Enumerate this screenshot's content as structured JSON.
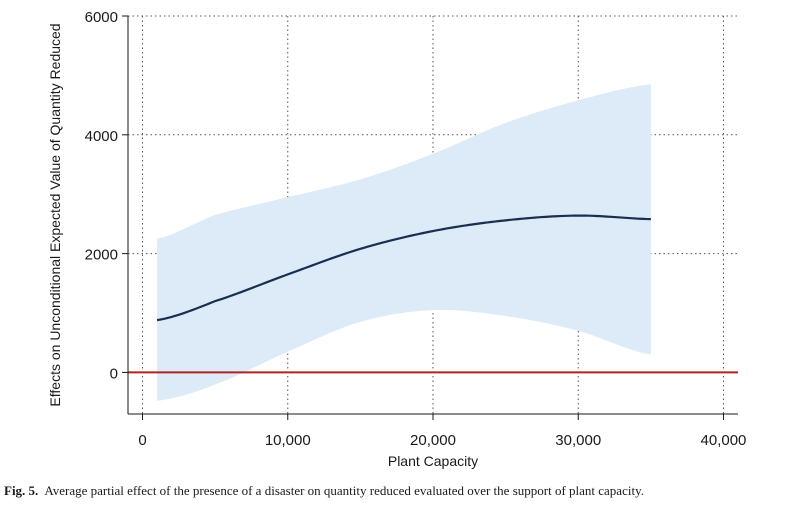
{
  "caption": {
    "label": "Fig. 5.",
    "text": "Average partial effect of the presence of a disaster on quantity reduced evaluated over the support of plant capacity."
  },
  "chart_data": {
    "type": "line",
    "xlabel": "Plant Capacity",
    "ylabel": "Effects on Unconditional Expected Value of Quantity Reduced",
    "xlim": [
      -1000,
      41000
    ],
    "ylim": [
      -700,
      6000
    ],
    "xticks": [
      0,
      10000,
      20000,
      30000,
      40000
    ],
    "xtick_labels": [
      "0",
      "10,000",
      "20,000",
      "30,000",
      "40,000"
    ],
    "yticks": [
      0,
      2000,
      4000,
      6000
    ],
    "ytick_labels": [
      "0",
      "2000",
      "4000",
      "6000"
    ],
    "grid": true,
    "reference_line": {
      "y": 0,
      "color": "#b22222"
    },
    "colors": {
      "line": "#1a2e52",
      "band": "#dcebf7",
      "grid": "#555555"
    },
    "series": [
      {
        "x": [
          1000,
          5000,
          10000,
          15000,
          20000,
          25000,
          30000,
          35000
        ],
        "y": [
          880,
          1200,
          1650,
          2080,
          2380,
          2560,
          2640,
          2580
        ],
        "ci_lower": [
          -480,
          -200,
          350,
          850,
          1050,
          950,
          700,
          300
        ],
        "ci_upper": [
          2250,
          2650,
          2950,
          3250,
          3680,
          4200,
          4580,
          4850
        ]
      }
    ]
  }
}
